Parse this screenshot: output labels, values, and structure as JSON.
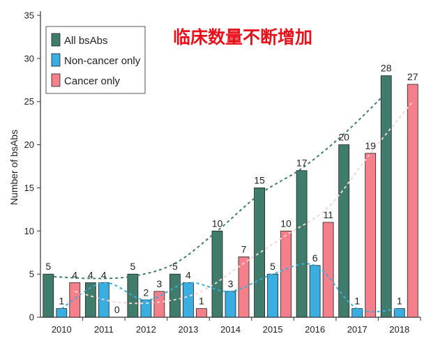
{
  "chart_data": {
    "type": "bar",
    "ylabel": "Number of bsAbs",
    "ylim": [
      0,
      35
    ],
    "yticks": [
      0,
      5,
      10,
      15,
      20,
      25,
      30,
      35
    ],
    "categories": [
      "2010",
      "2011",
      "2012",
      "2013",
      "2014",
      "2015",
      "2016",
      "2017",
      "2018"
    ],
    "series": [
      {
        "name": "All bsAbs",
        "color": "#3f7c6c",
        "values": [
          5,
          4,
          5,
          5,
          10,
          15,
          17,
          20,
          28
        ]
      },
      {
        "name": "Non-cancer only",
        "color": "#3aaee0",
        "values": [
          1,
          4,
          2,
          4,
          3,
          5,
          6,
          1,
          1
        ]
      },
      {
        "name": "Cancer only",
        "color": "#f4808b",
        "values": [
          4,
          0,
          3,
          1,
          7,
          10,
          11,
          19,
          27
        ]
      }
    ],
    "data_labels": [
      [
        "5",
        "1",
        "4"
      ],
      [
        "4",
        "4",
        "0"
      ],
      [
        "5",
        "2",
        "3"
      ],
      [
        "5",
        "4",
        "1"
      ],
      [
        "10",
        "3",
        "7"
      ],
      [
        "15",
        "5",
        "10"
      ],
      [
        "17",
        "6",
        "11"
      ],
      [
        "20",
        "1",
        "19"
      ],
      [
        "28",
        "1",
        "27"
      ]
    ],
    "trendlines": [
      {
        "series": "All bsAbs",
        "color": "#3f7c6c",
        "style": "dashed"
      },
      {
        "series": "Non-cancer only",
        "color": "#3aaee0",
        "style": "dashed"
      },
      {
        "series": "Cancer only",
        "color": "#f6d3d6",
        "style": "dashed"
      }
    ],
    "legend_position": "top-left",
    "grid": false,
    "annotation": "临床数量不断增加"
  }
}
